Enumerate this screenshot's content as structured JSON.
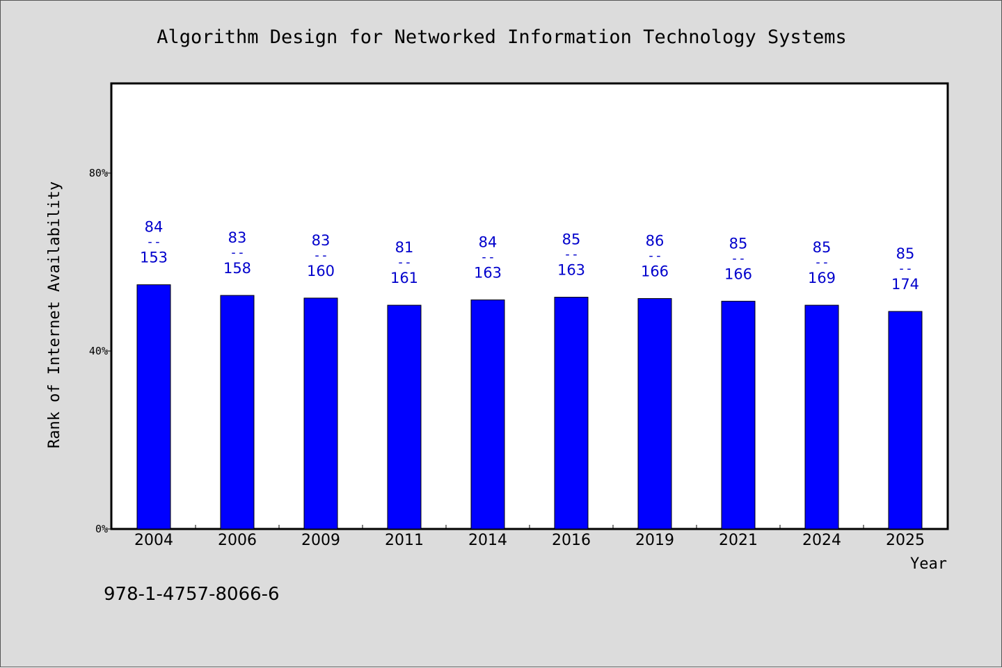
{
  "chart_data": {
    "type": "bar",
    "title": "Algorithm Design for Networked Information Technology Systems",
    "xlabel": "Year",
    "ylabel": "Rank of Internet Availability",
    "footer": "978-1-4757-8066-6",
    "categories": [
      "2004",
      "2006",
      "2009",
      "2011",
      "2014",
      "2016",
      "2019",
      "2021",
      "2024",
      "2025"
    ],
    "values": [
      54.9,
      52.5,
      51.9,
      50.3,
      51.5,
      52.1,
      51.8,
      51.2,
      50.3,
      48.9
    ],
    "bar_labels": [
      {
        "top": "84",
        "sep": "--",
        "bottom": "153"
      },
      {
        "top": "83",
        "sep": "--",
        "bottom": "158"
      },
      {
        "top": "83",
        "sep": "--",
        "bottom": "160"
      },
      {
        "top": "81",
        "sep": "--",
        "bottom": "161"
      },
      {
        "top": "84",
        "sep": "--",
        "bottom": "163"
      },
      {
        "top": "85",
        "sep": "--",
        "bottom": "163"
      },
      {
        "top": "86",
        "sep": "--",
        "bottom": "166"
      },
      {
        "top": "85",
        "sep": "--",
        "bottom": "166"
      },
      {
        "top": "85",
        "sep": "--",
        "bottom": "169"
      },
      {
        "top": "85",
        "sep": "--",
        "bottom": "174"
      }
    ],
    "yticks": [
      {
        "value": 0,
        "label": "0%"
      },
      {
        "value": 40,
        "label": "40%"
      },
      {
        "value": 80,
        "label": "80%"
      }
    ],
    "ylim": [
      0,
      100
    ],
    "grid": false,
    "colors": {
      "bar": "#0000ff",
      "bar_label": "#0000cc",
      "background": "#dcdcdc",
      "plot_background": "#ffffff",
      "text": "#000000"
    }
  }
}
